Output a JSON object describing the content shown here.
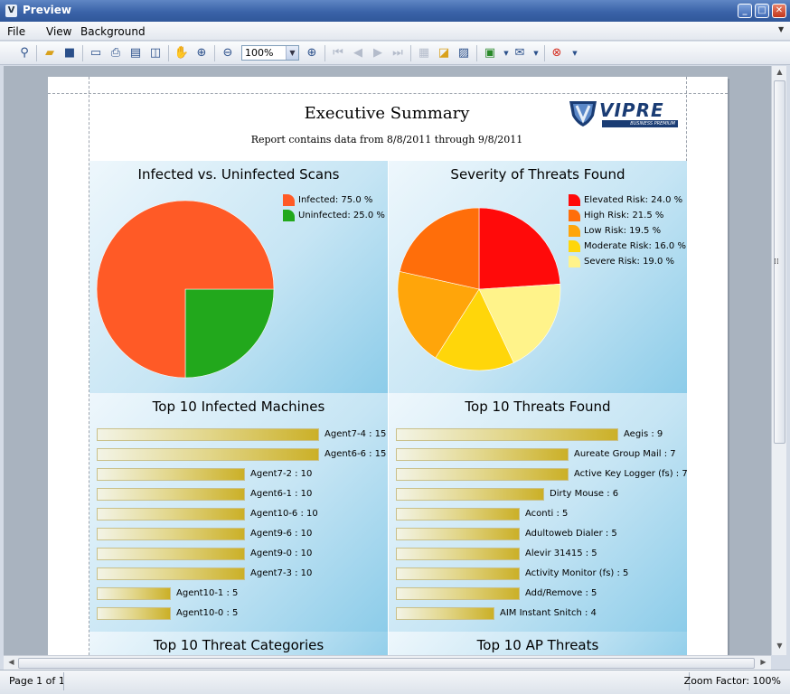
{
  "window": {
    "title": "Preview",
    "minimize": "_",
    "maximize": "□",
    "close": "✕"
  },
  "menu": [
    {
      "label": "File",
      "x": 8
    },
    {
      "label": "View",
      "x": 51
    },
    {
      "label": "Background",
      "x": 89
    }
  ],
  "toolbar": {
    "zoom_value": "100%"
  },
  "report": {
    "title": "Executive Summary",
    "subtitle": "Report contains data from 8/8/2011 through 9/8/2011",
    "logo_text": "VIPRE",
    "logo_subtext": "BUSINESS PREMIUM"
  },
  "chart_data": [
    {
      "type": "pie",
      "title": "Infected vs. Uninfected Scans",
      "slices": [
        {
          "label": "Infected: 75.0 %",
          "value": 75.0,
          "color": "#ff5a26"
        },
        {
          "label": "Uninfected: 25.0 %",
          "value": 25.0,
          "color": "#22a81c"
        }
      ],
      "legend": "top-right"
    },
    {
      "type": "pie",
      "title": "Severity of Threats Found",
      "slices": [
        {
          "label": "Elevated Risk: 24.0 %",
          "value": 24.0,
          "color": "#ff0a0a"
        },
        {
          "label": "High Risk: 21.5 %",
          "value": 21.5,
          "color": "#ff6e0a"
        },
        {
          "label": "Low Risk: 19.5 %",
          "value": 19.5,
          "color": "#ffa50a"
        },
        {
          "label": "Moderate Risk: 16.0 %",
          "value": 16.0,
          "color": "#ffd60a"
        },
        {
          "label": "Severe Risk: 19.0 %",
          "value": 19.0,
          "color": "#fff38a"
        }
      ],
      "pie_order": [
        0,
        4,
        3,
        2,
        1
      ],
      "legend": "top-right"
    },
    {
      "type": "bar",
      "title": "Top 10 Infected Machines",
      "categories": [
        "Agent7-4",
        "Agent6-6",
        "Agent7-2",
        "Agent6-1",
        "Agent10-6",
        "Agent9-6",
        "Agent9-0",
        "Agent7-3",
        "Agent10-1",
        "Agent10-0"
      ],
      "values": [
        15,
        15,
        10,
        10,
        10,
        10,
        10,
        10,
        5,
        5
      ],
      "labels": [
        "Agent7-4 : 15",
        "Agent6-6 : 15",
        "Agent7-2 : 10",
        "Agent6-1 : 10",
        "Agent10-6 : 10",
        "Agent9-6 : 10",
        "Agent9-0 : 10",
        "Agent7-3 : 10",
        "Agent10-1 : 5",
        "Agent10-0 : 5"
      ]
    },
    {
      "type": "bar",
      "title": "Top 10 Threats Found",
      "categories": [
        "Aegis",
        "Aureate Group Mail",
        "Active Key Logger (fs)",
        "Dirty Mouse",
        "Aconti",
        "Adultoweb Dialer",
        "Alevir 31415",
        "Activity Monitor (fs)",
        "Add/Remove",
        "AIM Instant Snitch"
      ],
      "values": [
        9,
        7,
        7,
        6,
        5,
        5,
        5,
        5,
        5,
        4
      ],
      "labels": [
        "Aegis : 9",
        "Aureate Group Mail : 7",
        "Active Key Logger (fs) : 7",
        "Dirty Mouse : 6",
        "Aconti : 5",
        "Adultoweb Dialer : 5",
        "Alevir 31415 : 5",
        "Activity Monitor (fs) : 5",
        "Add/Remove : 5",
        "AIM Instant Snitch : 4"
      ]
    }
  ],
  "more_sections": [
    "Top 10 Threat Categories",
    "Top 10 AP Threats"
  ],
  "status": {
    "page": "Page 1 of 1",
    "zoom": "Zoom Factor: 100%"
  }
}
